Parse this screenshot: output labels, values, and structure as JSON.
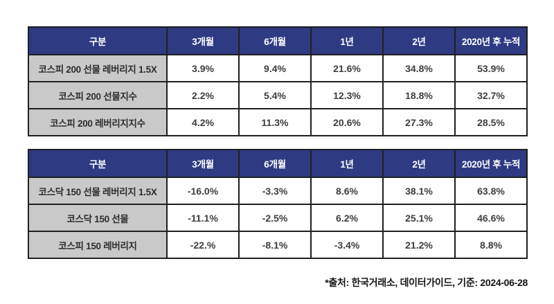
{
  "colors": {
    "header_bg": "#2E3A82",
    "header_text": "#ffffff",
    "label_bg": "#C9C9C9",
    "border": "#1f1f1f",
    "value_text": "#3d3d3d",
    "page_bg": "#ffffff"
  },
  "chart_data": [
    {
      "type": "table",
      "name": "kospi-200-futures-leverage-returns",
      "columns": [
        "구분",
        "3개월",
        "6개월",
        "1년",
        "2년",
        "2020년 후 누적"
      ],
      "rows": [
        [
          "코스피 200 선물 레버리지 1.5X",
          "3.9%",
          "9.4%",
          "21.6%",
          "34.8%",
          "53.9%"
        ],
        [
          "코스피 200 선물지수",
          "2.2%",
          "5.4%",
          "12.3%",
          "18.8%",
          "32.7%"
        ],
        [
          "코스피 200 레버리지지수",
          "4.2%",
          "11.3%",
          "20.6%",
          "27.3%",
          "28.5%"
        ]
      ]
    },
    {
      "type": "table",
      "name": "kosdaq-150-futures-leverage-returns",
      "columns": [
        "구분",
        "3개월",
        "6개월",
        "1년",
        "2년",
        "2020년 후 누적"
      ],
      "rows": [
        [
          "코스닥 150 선물 레버리지 1.5X",
          "-16.0%",
          "-3.3%",
          "8.6%",
          "38.1%",
          "63.8%"
        ],
        [
          "코스닥 150 선물",
          "-11.1%",
          "-2.5%",
          "6.2%",
          "25.1%",
          "46.6%"
        ],
        [
          "코스피 150 레버리지",
          "-22.%",
          "-8.1%",
          "-3.4%",
          "21.2%",
          "8.8%"
        ]
      ]
    }
  ],
  "footer": {
    "source_note": "*출처: 한국거래소, 데이터가이드, 기준: 2024-06-28"
  }
}
